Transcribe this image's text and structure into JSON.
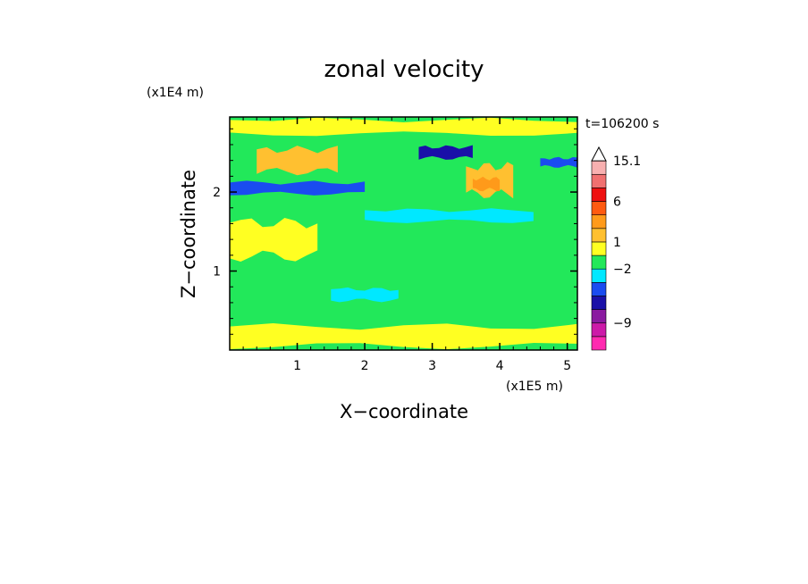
{
  "chart_data": {
    "type": "heatmap",
    "title": "zonal velocity",
    "xlabel": "X−coordinate",
    "ylabel": "Z−coordinate",
    "x_scale_label": "(x1E5 m)",
    "y_scale_label": "(x1E4 m)",
    "time_label": "t=106200 s",
    "xlim": [
      0,
      5.15
    ],
    "ylim": [
      0,
      2.95
    ],
    "xticks": [
      {
        "value": 1,
        "label": "1"
      },
      {
        "value": 2,
        "label": "2"
      },
      {
        "value": 3,
        "label": "3"
      },
      {
        "value": 4,
        "label": "4"
      },
      {
        "value": 5,
        "label": "5"
      }
    ],
    "yticks": [
      {
        "value": 1,
        "label": "1"
      },
      {
        "value": 2,
        "label": "2"
      }
    ],
    "colorbar": {
      "levels": [
        {
          "color": "#ff2ab0",
          "label": ""
        },
        {
          "color": "#cc1aa8",
          "label": "−9"
        },
        {
          "color": "#8a1aa0",
          "label": ""
        },
        {
          "color": "#1a10a8",
          "label": ""
        },
        {
          "color": "#1a4cf0",
          "label": ""
        },
        {
          "color": "#00e8ff",
          "label": "−2"
        },
        {
          "color": "#22e85a",
          "label": ""
        },
        {
          "color": "#ffff22",
          "label": "1"
        },
        {
          "color": "#ffc030",
          "label": ""
        },
        {
          "color": "#ff9a1a",
          "label": ""
        },
        {
          "color": "#ff5a10",
          "label": "6"
        },
        {
          "color": "#ee1010",
          "label": ""
        },
        {
          "color": "#f07070",
          "label": ""
        },
        {
          "color": "#f8b0b0",
          "label": "15.1"
        },
        {
          "color": "#ffffff",
          "label": ""
        }
      ]
    },
    "field_regions": [
      {
        "level": 6,
        "x": [
          0.0,
          5.15
        ],
        "z": [
          0.0,
          2.95
        ]
      },
      {
        "level": 7,
        "x": [
          0.0,
          5.15
        ],
        "z": [
          2.7,
          2.95
        ]
      },
      {
        "level": 7,
        "x": [
          0.0,
          1.3
        ],
        "z": [
          1.1,
          1.7
        ]
      },
      {
        "level": 7,
        "x": [
          0.0,
          5.15
        ],
        "z": [
          0.0,
          0.35
        ]
      },
      {
        "level": 8,
        "x": [
          0.4,
          1.6
        ],
        "z": [
          2.2,
          2.6
        ]
      },
      {
        "level": 8,
        "x": [
          3.5,
          4.2
        ],
        "z": [
          1.9,
          2.4
        ]
      },
      {
        "level": 9,
        "x": [
          3.6,
          4.0
        ],
        "z": [
          2.0,
          2.2
        ]
      },
      {
        "level": 5,
        "x": [
          2.0,
          4.5
        ],
        "z": [
          1.6,
          1.8
        ]
      },
      {
        "level": 5,
        "x": [
          1.5,
          2.5
        ],
        "z": [
          0.6,
          0.8
        ]
      },
      {
        "level": 4,
        "x": [
          0.0,
          2.0
        ],
        "z": [
          1.95,
          2.15
        ]
      },
      {
        "level": 3,
        "x": [
          2.8,
          3.6
        ],
        "z": [
          2.4,
          2.6
        ]
      },
      {
        "level": 4,
        "x": [
          4.6,
          5.15
        ],
        "z": [
          2.3,
          2.45
        ]
      }
    ]
  }
}
